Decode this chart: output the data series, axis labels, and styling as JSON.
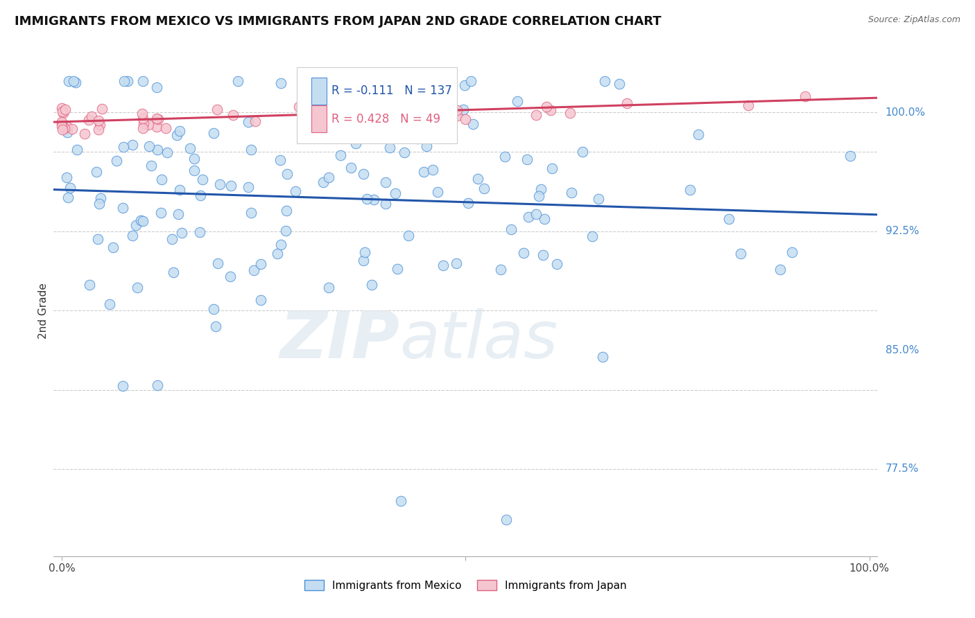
{
  "title": "IMMIGRANTS FROM MEXICO VS IMMIGRANTS FROM JAPAN 2ND GRADE CORRELATION CHART",
  "source": "Source: ZipAtlas.com",
  "ylabel": "2nd Grade",
  "ymin": 0.72,
  "ymax": 1.03,
  "xmin": -0.01,
  "xmax": 1.01,
  "blue_R": -0.111,
  "blue_N": 137,
  "pink_R": 0.428,
  "pink_N": 49,
  "blue_fill": "#c5ddf0",
  "blue_edge": "#4a90d9",
  "pink_fill": "#f5c6d0",
  "pink_edge": "#e06080",
  "blue_line_color": "#2255aa",
  "pink_line_color": "#d04060",
  "watermark_zip": "ZIP",
  "watermark_atlas": "atlas",
  "legend_label_blue": "Immigrants from Mexico",
  "legend_label_pink": "Immigrants from Japan",
  "right_labels": {
    "1.00": "100.0%",
    "0.925": "92.5%",
    "0.85": "85.0%",
    "0.775": "77.5%"
  },
  "grid_lines": [
    0.775,
    0.825,
    0.875,
    0.925,
    0.975,
    1.0
  ],
  "title_fontsize": 13,
  "source_fontsize": 9
}
